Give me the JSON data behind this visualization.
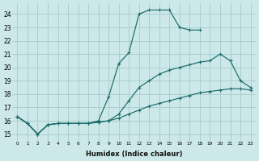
{
  "xlabel": "Humidex (Indice chaleur)",
  "ylabel": "",
  "bg_color": "#cce8e8",
  "grid_color": "#aacfcf",
  "line_color": "#1a6b6b",
  "xlim": [
    -0.5,
    23.5
  ],
  "ylim": [
    14.5,
    24.8
  ],
  "xticks": [
    0,
    1,
    2,
    3,
    4,
    5,
    6,
    7,
    8,
    9,
    10,
    11,
    12,
    13,
    14,
    15,
    16,
    17,
    18,
    19,
    20,
    21,
    22,
    23
  ],
  "yticks": [
    15,
    16,
    17,
    18,
    19,
    20,
    21,
    22,
    23,
    24
  ],
  "lines": [
    {
      "x": [
        0,
        1,
        2,
        3,
        4,
        5,
        6,
        7,
        8,
        9,
        10,
        11,
        12,
        13,
        14,
        15,
        16,
        17,
        18,
        19,
        20,
        21,
        22,
        23
      ],
      "y": [
        16.3,
        15.8,
        15.0,
        15.7,
        15.8,
        15.8,
        15.8,
        15.8,
        15.9,
        16.0,
        16.2,
        16.5,
        16.8,
        17.1,
        17.3,
        17.5,
        17.7,
        17.9,
        18.1,
        18.2,
        18.3,
        18.4,
        18.4,
        18.3
      ]
    },
    {
      "x": [
        0,
        1,
        2,
        3,
        4,
        5,
        6,
        7,
        8,
        9,
        10,
        11,
        12,
        13,
        14,
        15,
        16,
        17,
        18,
        19,
        20,
        21,
        22,
        23
      ],
      "y": [
        16.3,
        15.8,
        15.0,
        15.7,
        15.8,
        15.8,
        15.8,
        15.8,
        15.9,
        16.0,
        16.5,
        17.5,
        18.5,
        19.0,
        19.5,
        19.8,
        20.0,
        20.2,
        20.4,
        20.5,
        21.0,
        20.5,
        19.0,
        18.5
      ]
    },
    {
      "x": [
        0,
        1,
        2,
        3,
        4,
        5,
        6,
        7,
        8,
        9,
        10,
        11,
        12,
        13,
        14,
        15,
        16,
        17,
        18
      ],
      "y": [
        16.3,
        15.8,
        15.0,
        15.7,
        15.8,
        15.8,
        15.8,
        15.8,
        16.0,
        17.8,
        20.3,
        21.1,
        24.0,
        24.3,
        24.3,
        24.3,
        23.0,
        22.8,
        22.8
      ]
    }
  ]
}
